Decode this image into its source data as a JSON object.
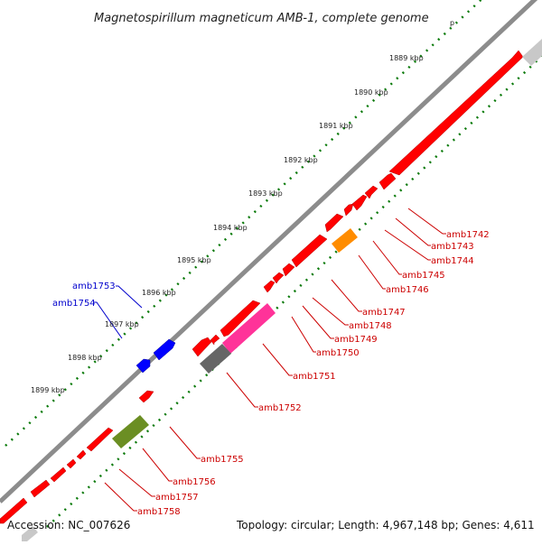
{
  "title": "Magnetospirillum magneticum AMB-1, complete genome",
  "partial_label": "p",
  "footer": {
    "accession": "Accession: NC_007626",
    "topology": "Topology: circular; Length: 4,967,148 bp; Genes: 4,611"
  },
  "colors": {
    "backbone": "#8c8c8c",
    "forward_gene": "#ff0000",
    "reverse_gene": "#0000ff",
    "tick": "#0a7a0a",
    "forward_label": "#cc0000",
    "reverse_label": "#0000cc",
    "orange": "#ff8c00",
    "magenta": "#ff3399",
    "olive": "#6b8e23",
    "gray": "#666666",
    "light_gray": "#c8c8c8"
  },
  "scale_labels": [
    "1889 kbp",
    "1890 kbp",
    "1891 kbp",
    "1892 kbp",
    "1893 kbp",
    "1894 kbp",
    "1895 kbp",
    "1896 kbp",
    "1897 kbp",
    "1898 kbp",
    "1899 kbp"
  ],
  "gene_labels": {
    "amb1742": "amb1742",
    "amb1743": "amb1743",
    "amb1744": "amb1744",
    "amb1745": "amb1745",
    "amb1746": "amb1746",
    "amb1747": "amb1747",
    "amb1748": "amb1748",
    "amb1749": "amb1749",
    "amb1750": "amb1750",
    "amb1751": "amb1751",
    "amb1752": "amb1752",
    "amb1753": "amb1753",
    "amb1754": "amb1754",
    "amb1755": "amb1755",
    "amb1756": "amb1756",
    "amb1757": "amb1757",
    "amb1758": "amb1758"
  }
}
